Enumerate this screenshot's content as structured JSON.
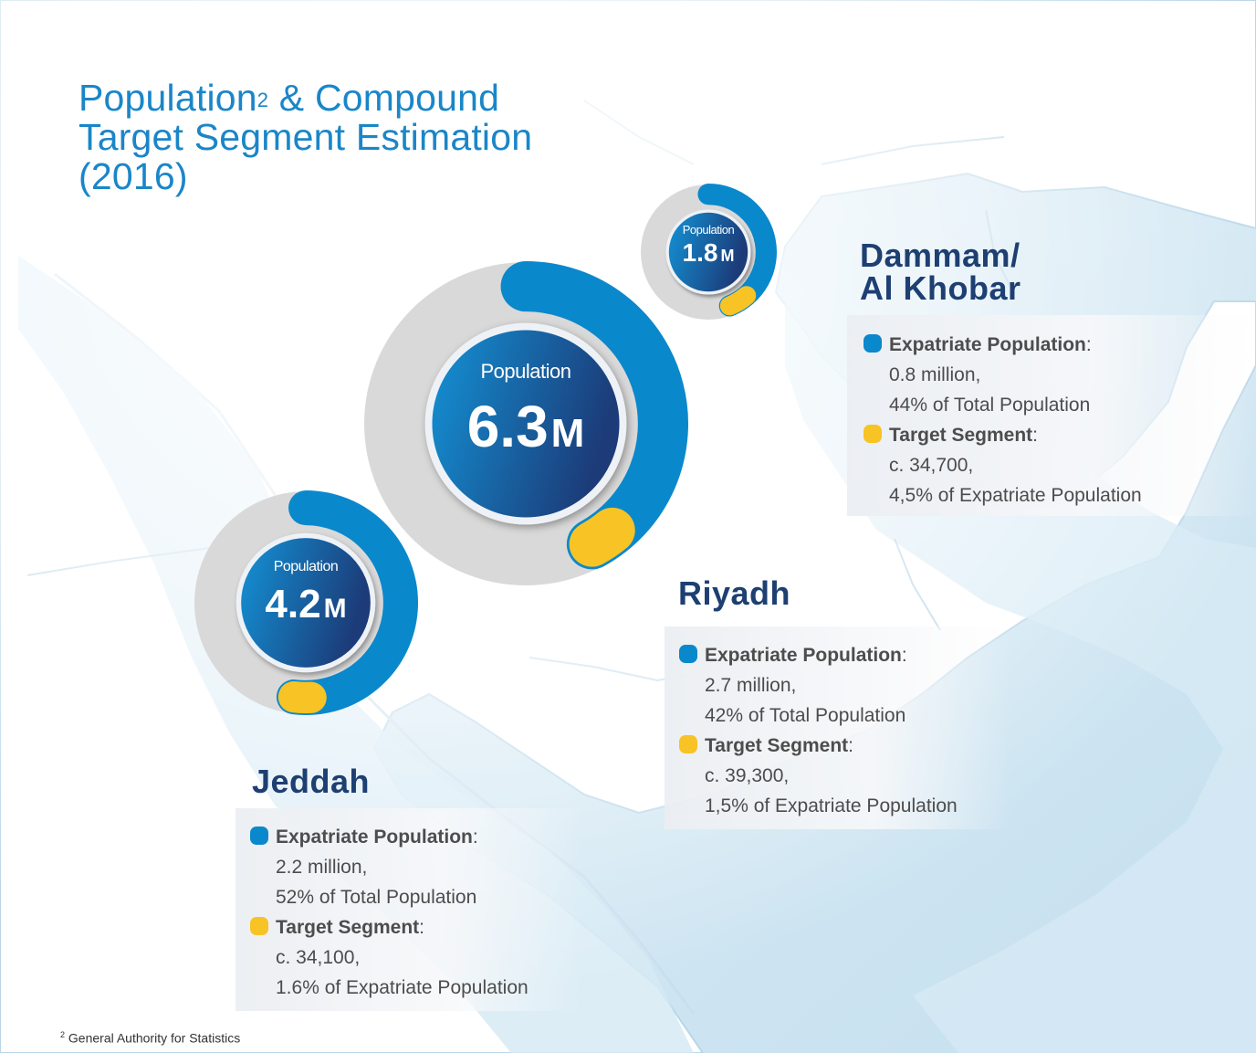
{
  "title": {
    "line1_pre": "Population",
    "line1_sup": "2",
    "line1_post": " & Compound",
    "line2": "Target Segment Estimation",
    "line3": "(2016)"
  },
  "colors": {
    "title": "#1a86c8",
    "city_name": "#1d3f72",
    "expatriate": "#0a88cc",
    "target": "#f7c325",
    "ring_bg": "#d9d9d9",
    "center_dark": "#1c3b78",
    "center_light": "#1393d6",
    "sea": "#cfe6f2",
    "land": "#ffffff"
  },
  "cities": [
    {
      "name": "Riyadh",
      "name_lines": [
        "Riyadh"
      ],
      "population_label": "Population",
      "population_value": "6.3",
      "population_unit": "M",
      "expatriate_label": "Expatriate Population",
      "expatriate_colon": ":",
      "expatriate_value": "2.7 million,",
      "expatriate_share_text": "42% of Total Population",
      "target_label": "Target Segment",
      "target_colon": ":",
      "target_value": "c. 39,300,",
      "target_share_text": "1,5% of Expatriate Population"
    },
    {
      "name": "Jeddah",
      "name_lines": [
        "Jeddah"
      ],
      "population_label": "Population",
      "population_value": "4.2",
      "population_unit": "M",
      "expatriate_label": "Expatriate Population",
      "expatriate_colon": ":",
      "expatriate_value": "2.2 million,",
      "expatriate_share_text": "52% of Total Population",
      "target_label": "Target Segment",
      "target_colon": ":",
      "target_value": "c. 34,100,",
      "target_share_text": "1.6% of Expatriate Population"
    },
    {
      "name": "Dammam/ Al Khobar",
      "name_lines": [
        "Dammam/",
        "Al Khobar"
      ],
      "population_label": "Population",
      "population_value": "1.8",
      "population_unit": "M",
      "expatriate_label": "Expatriate Population",
      "expatriate_colon": ":",
      "expatriate_value": "0.8 million,",
      "expatriate_share_text": "44% of Total Population",
      "target_label": "Target Segment",
      "target_colon": ":",
      "target_value": "c. 34,700,",
      "target_share_text": "4,5% of Expatriate Population"
    }
  ],
  "chart_data": {
    "type": "donut",
    "series": [
      {
        "name": "Expatriate Population",
        "values": [
          0.42,
          0.52,
          0.44
        ]
      },
      {
        "name": "Target Segment",
        "values": [
          0.015,
          0.016,
          0.045
        ]
      }
    ],
    "categories": [
      "Riyadh",
      "Jeddah",
      "Dammam/ Al Khobar"
    ],
    "population_millions": [
      6.3,
      4.2,
      1.8
    ],
    "expatriate_millions": [
      2.7,
      2.2,
      0.8
    ],
    "target_segment": [
      39300,
      34100,
      34700
    ]
  },
  "footnote": {
    "sup": "2",
    "text": " General Authority for Statistics"
  }
}
